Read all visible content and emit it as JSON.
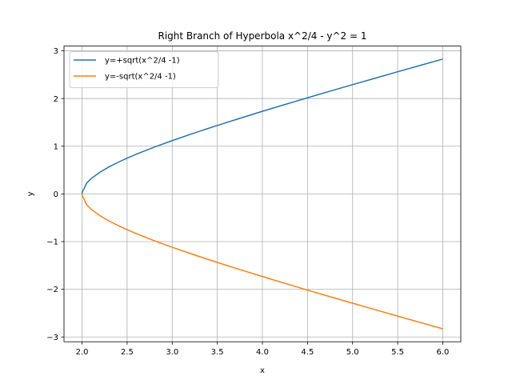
{
  "chart_data": {
    "type": "line",
    "title": "Right Branch of Hyperbola x^2/4 - y^2 = 1",
    "xlabel": "x",
    "ylabel": "y",
    "xlim": [
      1.8,
      6.2
    ],
    "ylim": [
      -3.1,
      3.1
    ],
    "x_ticks": [
      2.0,
      2.5,
      3.0,
      3.5,
      4.0,
      4.5,
      5.0,
      5.5,
      6.0
    ],
    "x_tick_labels": [
      "2.0",
      "2.5",
      "3.0",
      "3.5",
      "4.0",
      "4.5",
      "5.0",
      "5.5",
      "6.0"
    ],
    "y_ticks": [
      -3,
      -2,
      -1,
      0,
      1,
      2,
      3
    ],
    "y_tick_labels": [
      "−3",
      "−2",
      "−1",
      "0",
      "1",
      "2",
      "3"
    ],
    "grid": true,
    "legend_position": "upper-left",
    "x": [
      2.0,
      2.005,
      2.02,
      2.05,
      2.1,
      2.2,
      2.3,
      2.4,
      2.5,
      2.6,
      2.8,
      3.0,
      3.25,
      3.5,
      3.75,
      4.0,
      4.25,
      4.5,
      4.75,
      5.0,
      5.25,
      5.5,
      5.75,
      6.0
    ],
    "series": [
      {
        "name": "y=+sqrt(x^2/4 -1)",
        "color": "#1f77b4",
        "values": [
          0.0,
          0.05,
          0.1,
          0.226,
          0.32,
          0.458,
          0.568,
          0.663,
          0.75,
          0.831,
          0.98,
          1.118,
          1.281,
          1.436,
          1.586,
          1.732,
          1.875,
          2.016,
          2.155,
          2.291,
          2.427,
          2.562,
          2.695,
          2.828
        ]
      },
      {
        "name": "y=-sqrt(x^2/4 -1)",
        "color": "#ff7f0e",
        "values": [
          0.0,
          -0.05,
          -0.1,
          -0.226,
          -0.32,
          -0.458,
          -0.568,
          -0.663,
          -0.75,
          -0.831,
          -0.98,
          -1.118,
          -1.281,
          -1.436,
          -1.586,
          -1.732,
          -1.875,
          -2.016,
          -2.155,
          -2.291,
          -2.427,
          -2.562,
          -2.695,
          -2.828
        ]
      }
    ]
  }
}
